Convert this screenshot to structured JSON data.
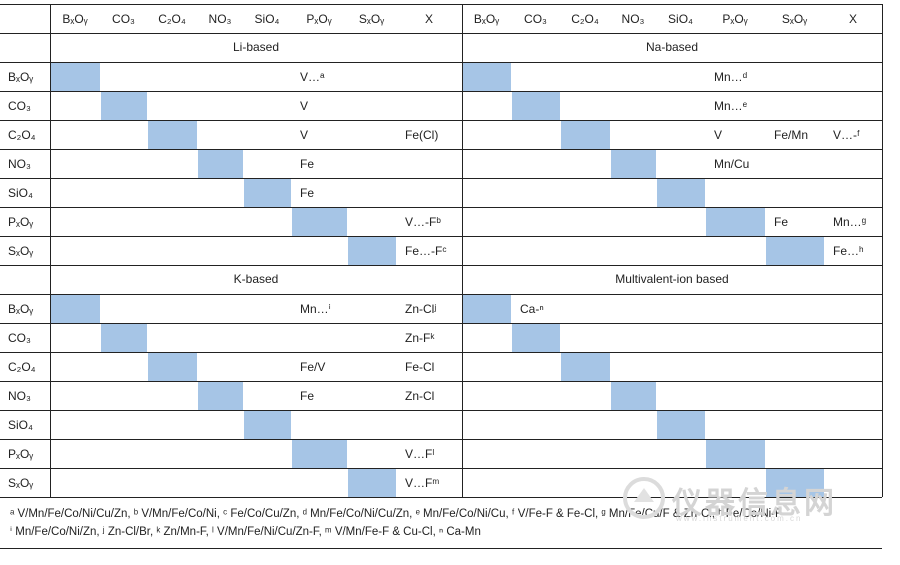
{
  "columns": [
    "BₓOᵧ",
    "CO₃",
    "C₂O₄",
    "NO₃",
    "SiO₄",
    "PₓOᵧ",
    "SₓOᵧ",
    "X"
  ],
  "rows": [
    "BₓOᵧ",
    "CO₃",
    "C₂O₄",
    "NO₃",
    "SiO₄",
    "PₓOᵧ",
    "SₓOᵧ"
  ],
  "sections": {
    "li": "Li-based",
    "na": "Na-based",
    "k": "K-based",
    "mv": "Multivalent-ion based"
  },
  "li": {
    "r0": {
      "px": "V…ᵃ"
    },
    "r1": {
      "px": "V"
    },
    "r2": {
      "px": "V",
      "x": "Fe(Cl)"
    },
    "r3": {
      "px": "Fe"
    },
    "r4": {
      "px": "Fe"
    },
    "r5": {
      "x": "V…-Fᵇ"
    },
    "r6": {
      "x": "Fe…-Fᶜ"
    }
  },
  "na": {
    "r0": {
      "px": "Mn…ᵈ"
    },
    "r1": {
      "px": "Mn…ᵉ"
    },
    "r2": {
      "px": "V",
      "sx": "Fe/Mn",
      "x": "V…-ᶠ"
    },
    "r3": {
      "px": "Mn/Cu"
    },
    "r5": {
      "sx": "Fe",
      "x": "Mn…ᵍ"
    },
    "r6": {
      "x": "Fe…ʰ"
    }
  },
  "k": {
    "r0": {
      "px": "Mn…ⁱ",
      "x": "Zn-Clʲ"
    },
    "r1": {
      "x": "Zn-Fᵏ"
    },
    "r2": {
      "px": "Fe/V",
      "x": "Fe-Cl"
    },
    "r3": {
      "px": "Fe",
      "x": "Zn-Cl"
    },
    "r5": {
      "x": "V…Fˡ"
    },
    "r6": {
      "x": "V…Fᵐ"
    }
  },
  "mv": {
    "r0": {
      "co": "Ca-ⁿ"
    }
  },
  "footnotes": {
    "line1": "ᵃ V/Mn/Fe/Co/Ni/Cu/Zn, ᵇ V/Mn/Fe/Co/Ni, ᶜ Fe/Co/Cu/Zn, ᵈ Mn/Fe/Co/Ni/Cu/Zn, ᵉ Mn/Fe/Co/Ni/Cu, ᶠ V/Fe-F & Fe-Cl, ᵍ Mn/Fe/Cu/F & Zn-Cl, ʰ Fe/Co/Ni-F",
    "line2": "ⁱ Mn/Fe/Co/Ni/Zn, ʲ Zn-Cl/Br, ᵏ Zn/Mn-F, ˡ V/Mn/Fe/Ni/Cu/Zn-F, ᵐ V/Mn/Fe-F & Cu-Cl, ⁿ Ca-Mn"
  },
  "watermark": {
    "title": "仪器信息网",
    "url": "www.instrument.com.cn"
  }
}
